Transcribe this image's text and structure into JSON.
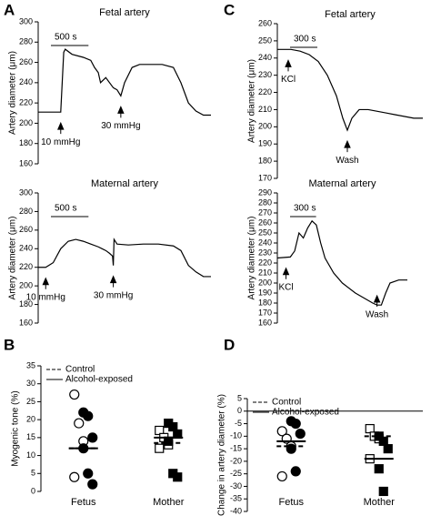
{
  "panel_labels": [
    "A",
    "B",
    "C",
    "D"
  ],
  "chart_data": [
    {
      "type": "line",
      "title": "Fetal artery",
      "ylabel": "Artery diameter (μm)",
      "x": [
        0,
        300,
        340,
        360,
        450,
        600,
        700,
        750,
        800,
        830,
        900,
        1000,
        1050,
        1100,
        1150,
        1250,
        1350,
        1500,
        1650,
        1800,
        1900,
        2000,
        2100,
        2200,
        2300
      ],
      "values": [
        211,
        211,
        270,
        273,
        268,
        265,
        262,
        255,
        250,
        240,
        245,
        235,
        233,
        227,
        240,
        255,
        258,
        258,
        258,
        255,
        240,
        220,
        212,
        208,
        208
      ],
      "xlim": [
        0,
        2300
      ],
      "ylim": [
        160,
        300
      ],
      "yticks": [
        160,
        180,
        200,
        220,
        240,
        260,
        280,
        300
      ],
      "scalebar": {
        "value": 500,
        "label": "500 s"
      },
      "annotations": [
        {
          "text": "10 mmHg",
          "x": 300
        },
        {
          "text": "30 mmHg",
          "x": 1100
        }
      ],
      "color": "#000000"
    },
    {
      "type": "line",
      "title": "Maternal artery",
      "ylabel": "Artery diameter (μm)",
      "x": [
        0,
        100,
        200,
        300,
        400,
        500,
        600,
        700,
        800,
        850,
        900,
        950,
        990,
        1000,
        1010,
        1050,
        1200,
        1400,
        1600,
        1800,
        1900,
        2000,
        2100,
        2200,
        2300
      ],
      "values": [
        220,
        220,
        225,
        240,
        248,
        250,
        248,
        245,
        242,
        240,
        238,
        235,
        232,
        222,
        250,
        245,
        244,
        245,
        245,
        243,
        238,
        222,
        215,
        210,
        210
      ],
      "xlim": [
        0,
        2300
      ],
      "ylim": [
        160,
        300
      ],
      "yticks": [
        160,
        180,
        200,
        220,
        240,
        260,
        280,
        300
      ],
      "scalebar": {
        "value": 500,
        "label": "500 s"
      },
      "annotations": [
        {
          "text": "10 mmHg",
          "x": 100
        },
        {
          "text": "30 mmHg",
          "x": 1000
        }
      ],
      "color": "#000000"
    },
    {
      "type": "line",
      "title": "Fetal artery",
      "ylabel": "Artery diameter (μm)",
      "x": [
        0,
        150,
        250,
        350,
        450,
        550,
        650,
        720,
        770,
        820,
        900,
        1000,
        1100,
        1200,
        1300,
        1400,
        1500,
        1600
      ],
      "values": [
        245,
        245,
        244,
        242,
        238,
        230,
        218,
        205,
        198,
        205,
        210,
        210,
        209,
        208,
        207,
        206,
        205,
        205
      ],
      "xlim": [
        0,
        1600
      ],
      "ylim": [
        170,
        260
      ],
      "yticks": [
        170,
        180,
        190,
        200,
        210,
        220,
        230,
        240,
        250,
        260
      ],
      "scalebar": {
        "value": 300,
        "label": "300 s"
      },
      "annotations": [
        {
          "text": "KCl",
          "x": 120
        },
        {
          "text": "Wash",
          "x": 770
        }
      ],
      "color": "#000000"
    },
    {
      "type": "line",
      "title": "Maternal artery",
      "ylabel": "Artery diameter (μm)",
      "x": [
        0,
        150,
        200,
        250,
        300,
        350,
        400,
        450,
        500,
        550,
        650,
        750,
        900,
        1000,
        1100,
        1150,
        1200,
        1250,
        1300,
        1400,
        1500
      ],
      "values": [
        225,
        226,
        232,
        250,
        245,
        255,
        262,
        258,
        240,
        225,
        210,
        200,
        190,
        185,
        180,
        178,
        178,
        190,
        200,
        203,
        203
      ],
      "xlim": [
        0,
        1500
      ],
      "ylim": [
        160,
        290
      ],
      "yticks": [
        160,
        170,
        180,
        190,
        200,
        210,
        220,
        230,
        240,
        250,
        260,
        270,
        280,
        290
      ],
      "scalebar": {
        "value": 300,
        "label": "300 s"
      },
      "annotations": [
        {
          "text": "KCl",
          "x": 100
        },
        {
          "text": "Wash",
          "x": 1150
        }
      ],
      "color": "#000000"
    },
    {
      "type": "dot",
      "ylabel": "Myogenic tone (%)",
      "categories": [
        "Fetus",
        "Mother"
      ],
      "markers": [
        "circle",
        "square"
      ],
      "ylim": [
        0,
        35
      ],
      "yticks": [
        0,
        5,
        10,
        15,
        20,
        25,
        30,
        35
      ],
      "series": [
        {
          "name": "Control",
          "line": "dashed",
          "fill": "open",
          "means": [
            12,
            13.5
          ],
          "points": [
            [
              27,
              19,
              14,
              4
            ],
            [
              17,
              15,
              13,
              12
            ]
          ]
        },
        {
          "name": "Alcohol-exposed",
          "line": "solid",
          "fill": "filled",
          "means": [
            12,
            15
          ],
          "points": [
            [
              22,
              21,
              15,
              12,
              5,
              2
            ],
            [
              19,
              18,
              16,
              14,
              5,
              4
            ]
          ]
        }
      ]
    },
    {
      "type": "dot",
      "ylabel": "Change in artery diameter (%)",
      "categories": [
        "Fetus",
        "Mother"
      ],
      "markers": [
        "circle",
        "square"
      ],
      "ylim": [
        -40,
        5
      ],
      "yticks": [
        -40,
        -35,
        -30,
        -25,
        -20,
        -15,
        -10,
        -5,
        0,
        5
      ],
      "zero_line": true,
      "series": [
        {
          "name": "Control",
          "line": "dashed",
          "fill": "open",
          "means": [
            -14,
            -10
          ],
          "points": [
            [
              -8,
              -11,
              -14,
              -26
            ],
            [
              -7,
              -10,
              -11,
              -19
            ]
          ]
        },
        {
          "name": "Alcohol-exposed",
          "line": "solid",
          "fill": "filled",
          "means": [
            -12,
            -19
          ],
          "points": [
            [
              -4,
              -5,
              -9,
              -15,
              -24
            ],
            [
              -10,
              -12,
              -15,
              -23,
              -32
            ]
          ]
        }
      ]
    }
  ]
}
